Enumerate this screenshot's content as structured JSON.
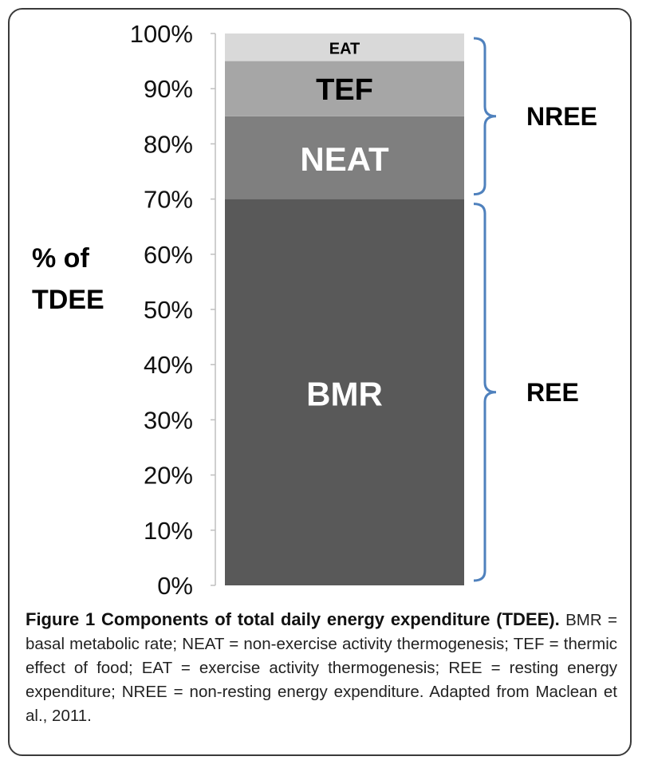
{
  "chart_data": {
    "type": "bar",
    "stacked": true,
    "categories": [
      ""
    ],
    "series": [
      {
        "name": "BMR",
        "values": [
          70
        ],
        "color": "#595959"
      },
      {
        "name": "NEAT",
        "values": [
          15
        ],
        "color": "#7f7f7f"
      },
      {
        "name": "TEF",
        "values": [
          10
        ],
        "color": "#a6a6a6"
      },
      {
        "name": "EAT",
        "values": [
          5
        ],
        "color": "#d9d9d9"
      }
    ],
    "segment_label_colors": {
      "BMR": "#ffffff",
      "NEAT": "#ffffff",
      "TEF": "#000000",
      "EAT": "#000000"
    },
    "ylim": [
      0,
      100
    ],
    "yticks": [
      "0%",
      "10%",
      "20%",
      "30%",
      "40%",
      "50%",
      "60%",
      "70%",
      "80%",
      "90%",
      "100%"
    ],
    "ylabel_lines": [
      "% of",
      "TDEE"
    ],
    "groups": [
      {
        "label": "NREE",
        "from": 70,
        "to": 100
      },
      {
        "label": "REE",
        "from": 0,
        "to": 70
      }
    ],
    "bracket_color": "#4f81bd",
    "grid": false,
    "legend": "none"
  },
  "caption": {
    "title": "Figure 1 Components of total daily energy expenditure (TDEE).",
    "text": "BMR = basal metabolic rate; NEAT = non-exercise activity thermogenesis; TEF = thermic effect of food; EAT = exercise activity thermogenesis; REE = resting energy expenditure; NREE = non-resting energy expenditure. Adapted from Maclean et al., 2011."
  }
}
